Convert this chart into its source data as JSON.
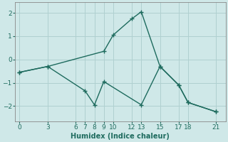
{
  "xlabel": "Humidex (Indice chaleur)",
  "background_color": "#cfe8e8",
  "line_color": "#1e6b5e",
  "grid_color": "#b0d0d0",
  "series1_x": [
    0,
    3,
    9,
    10,
    12,
    13,
    15,
    17,
    18,
    21
  ],
  "series1_y": [
    -0.55,
    -0.3,
    0.35,
    1.05,
    1.75,
    2.05,
    -0.3,
    -1.1,
    -1.85,
    -2.25
  ],
  "series2_x": [
    0,
    3,
    7,
    8,
    9,
    13,
    15,
    17,
    18,
    21
  ],
  "series2_y": [
    -0.55,
    -0.3,
    -1.35,
    -1.95,
    -0.95,
    -1.95,
    -0.3,
    -1.1,
    -1.85,
    -2.25
  ],
  "xticks": [
    0,
    3,
    6,
    7,
    8,
    9,
    10,
    12,
    13,
    15,
    17,
    18,
    21
  ],
  "yticks": [
    -2,
    -1,
    0,
    1,
    2
  ],
  "xlim": [
    -0.5,
    22.0
  ],
  "ylim": [
    -2.65,
    2.45
  ]
}
